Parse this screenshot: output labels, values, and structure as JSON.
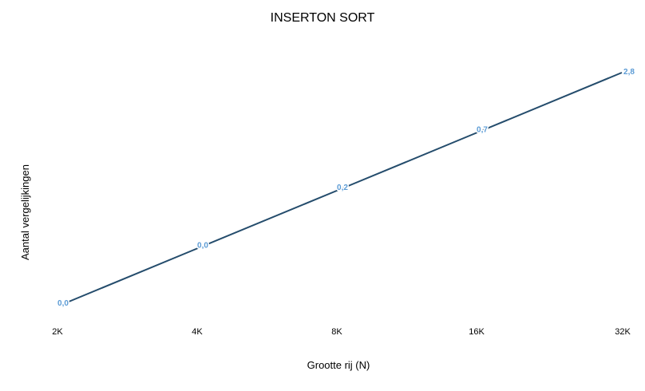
{
  "chart_data": {
    "type": "line",
    "title": "INSERTON SORT",
    "xlabel": "Grootte rij (N)",
    "ylabel": "Aantal vergelijkingen",
    "categories": [
      "2K",
      "4K",
      "8K",
      "16K",
      "32K"
    ],
    "series": [
      {
        "values": [
          0.0,
          0.0,
          0.2,
          0.7,
          2.8
        ],
        "data_labels": [
          "0,0",
          "0,0",
          "0,2",
          "0,7",
          "2,8"
        ],
        "color": "#244c6c",
        "label_color": "#5b9bd5"
      }
    ],
    "y_axis": "log",
    "grid": false,
    "legend": false
  }
}
